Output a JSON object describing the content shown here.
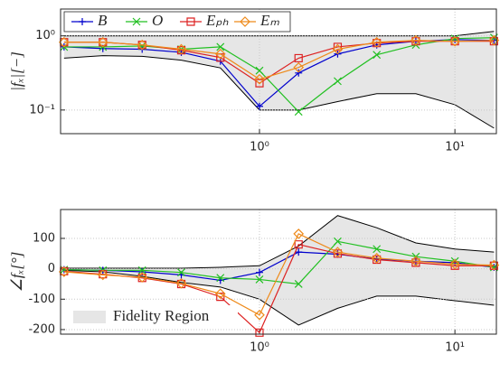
{
  "chart_data": [
    {
      "type": "line",
      "ylabel": "|fₓ|[−]",
      "xscale": "log",
      "yscale": "log",
      "grid": true,
      "legend": "upper left",
      "x": [
        0.1,
        0.158,
        0.251,
        0.398,
        0.631,
        1,
        1.585,
        2.512,
        3.981,
        6.31,
        10,
        15.85
      ],
      "xlim": [
        0.096,
        16.3
      ],
      "ylim": [
        0.048,
        2.3
      ],
      "xticks": [
        {
          "value": 1,
          "label": "10⁰"
        },
        {
          "value": 10,
          "label": "10¹"
        }
      ],
      "yticks": [
        {
          "value": 0.1,
          "label": "10⁻¹"
        },
        {
          "value": 1,
          "label": "10⁰"
        }
      ],
      "region": {
        "color": "#e6e6e6",
        "upper": [
          1,
          1,
          1,
          1,
          1,
          1,
          1,
          1,
          1,
          1,
          1,
          1.15
        ],
        "lower": [
          0.5,
          0.54,
          0.53,
          0.47,
          0.37,
          0.1,
          0.1,
          0.13,
          0.166,
          0.166,
          0.118,
          0.057
        ]
      },
      "series": [
        {
          "name": "B",
          "color": "#0000cd",
          "marker": "plus",
          "values": [
            0.71,
            0.675,
            0.66,
            0.6,
            0.455,
            0.112,
            0.316,
            0.57,
            0.755,
            0.845,
            0.89,
            0.87
          ]
        },
        {
          "name": "O",
          "color": "#22c022",
          "marker": "cross",
          "values": [
            0.71,
            0.71,
            0.73,
            0.66,
            0.71,
            0.34,
            0.095,
            0.245,
            0.555,
            0.755,
            0.92,
            0.945
          ]
        },
        {
          "name": "Eₚₕ",
          "color": "#dd2222",
          "marker": "square",
          "values": [
            0.82,
            0.82,
            0.755,
            0.64,
            0.51,
            0.23,
            0.5,
            0.71,
            0.8,
            0.845,
            0.845,
            0.845
          ]
        },
        {
          "name": "Eₘ",
          "color": "#ee8a1a",
          "marker": "diamond",
          "values": [
            0.82,
            0.82,
            0.755,
            0.66,
            0.57,
            0.26,
            0.375,
            0.66,
            0.82,
            0.87,
            0.845,
            0.87
          ]
        }
      ]
    },
    {
      "type": "line",
      "ylabel": "∠fₓ[°]",
      "xscale": "log",
      "grid": true,
      "legend": "lower left",
      "x": [
        0.1,
        0.158,
        0.251,
        0.398,
        0.631,
        1,
        1.585,
        2.512,
        3.981,
        6.31,
        10,
        15.85
      ],
      "xlim": [
        0.096,
        16.3
      ],
      "ylim": [
        -215,
        195
      ],
      "xticks": [
        {
          "value": 1,
          "label": "10⁰"
        },
        {
          "value": 10,
          "label": "10¹"
        }
      ],
      "yticks": [
        -200,
        -100,
        0,
        100
      ],
      "region": {
        "name": "Fidelity Region",
        "color": "#e6e6e6",
        "upper": [
          2,
          2,
          2,
          2,
          5,
          10,
          75,
          175,
          135,
          85,
          65,
          55
        ],
        "lower": [
          -5,
          -10,
          -25,
          -45,
          -60,
          -100,
          -185,
          -130,
          -90,
          -90,
          -105,
          -120
        ]
      },
      "series": [
        {
          "color": "#0000cd",
          "marker": "plus",
          "values": [
            -3,
            -5,
            -10,
            -20,
            -38,
            -12,
            55,
            48,
            32,
            25,
            20,
            5
          ]
        },
        {
          "color": "#22c022",
          "marker": "cross",
          "values": [
            -3,
            -5,
            -5,
            -12,
            -30,
            -35,
            -50,
            90,
            65,
            40,
            25,
            5
          ]
        },
        {
          "color": "#dd2222",
          "marker": "square",
          "values": [
            -8,
            -18,
            -30,
            -50,
            -92,
            -210,
            80,
            50,
            30,
            20,
            10,
            10
          ]
        },
        {
          "color": "#ee8a1a",
          "marker": "diamond",
          "values": [
            -10,
            -20,
            -28,
            -48,
            -82,
            -152,
            115,
            55,
            35,
            25,
            15,
            12
          ]
        }
      ]
    }
  ]
}
